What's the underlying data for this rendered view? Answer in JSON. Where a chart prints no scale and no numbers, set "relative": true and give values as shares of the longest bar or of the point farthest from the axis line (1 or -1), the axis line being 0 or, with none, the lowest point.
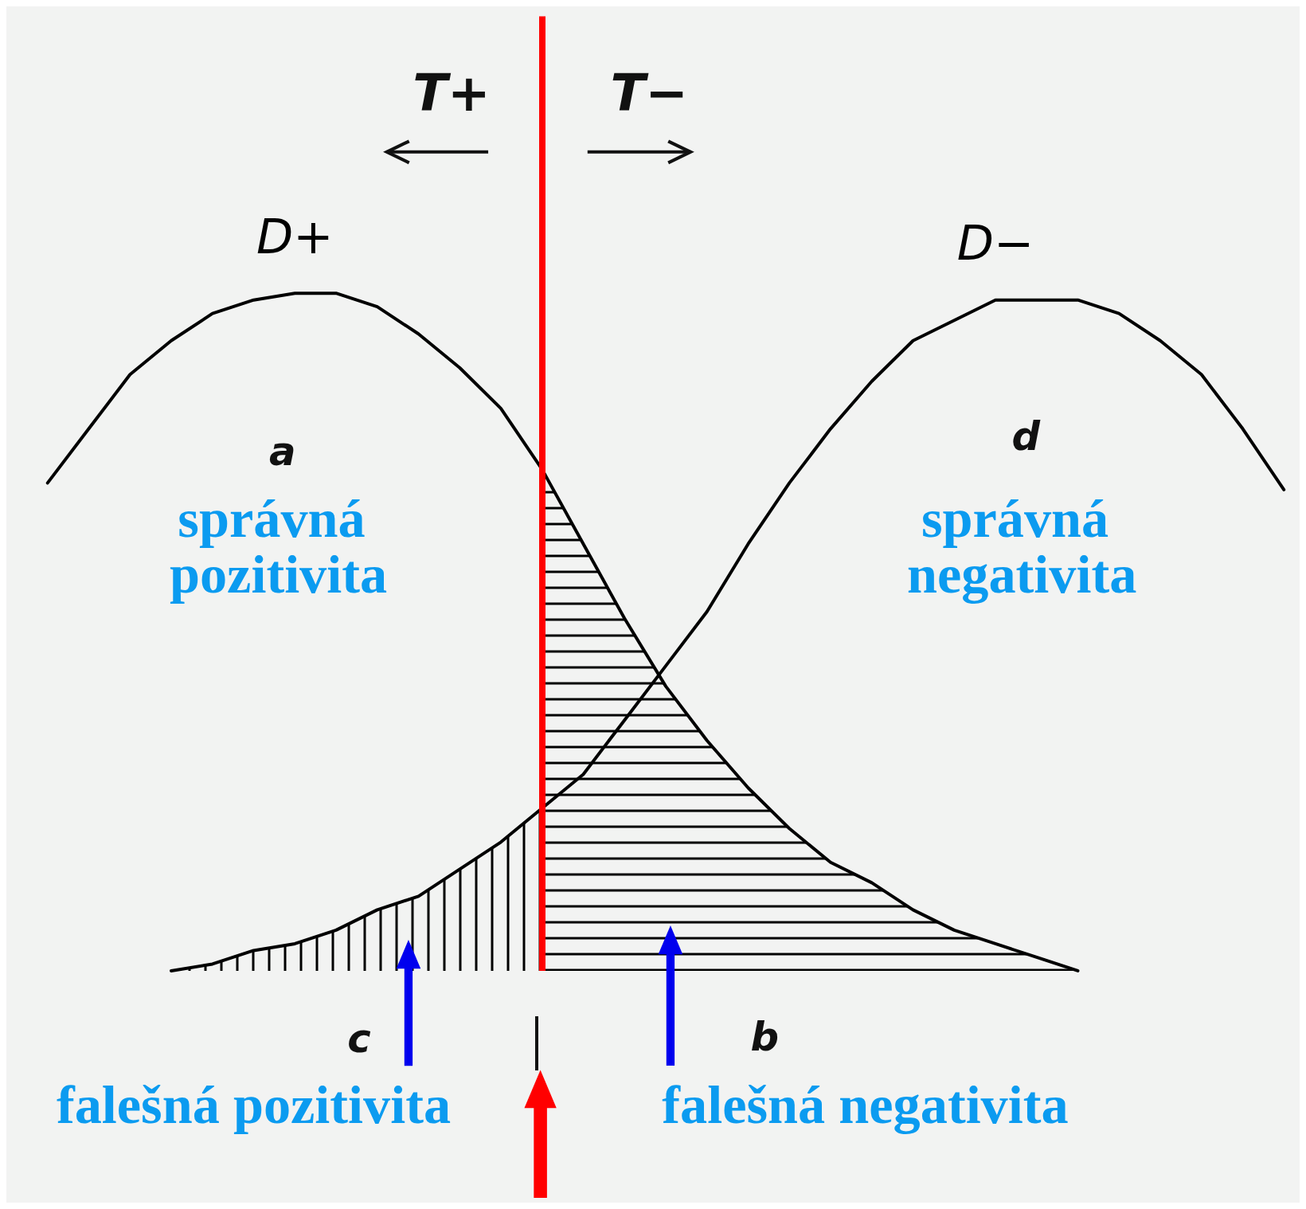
{
  "chart_data": {
    "type": "line",
    "relative": true,
    "tick_labels": false,
    "marker": "none",
    "line_style": "solid",
    "categories": [
      null,
      null,
      null,
      null,
      null,
      null,
      null,
      null,
      null,
      null,
      null,
      null,
      null,
      null,
      null,
      null,
      null,
      null,
      null,
      null,
      null,
      null,
      null,
      null,
      null,
      null,
      null,
      null,
      null,
      null,
      null
    ],
    "series": [
      {
        "name": "D+",
        "color": "#000000",
        "values": [
          0.72,
          0.8,
          0.88,
          0.93,
          0.97,
          0.99,
          1.0,
          1.0,
          0.98,
          0.94,
          0.89,
          0.83,
          0.74,
          0.63,
          0.52,
          0.42,
          0.34,
          0.27,
          0.21,
          0.16,
          0.13,
          0.09,
          0.06,
          0.04,
          0.02,
          0,
          null,
          null,
          null,
          null,
          null
        ]
      },
      {
        "name": "D−",
        "color": "#000000",
        "values": [
          null,
          null,
          null,
          0,
          0.01,
          0.03,
          0.04,
          0.06,
          0.09,
          0.11,
          0.15,
          0.19,
          0.24,
          0.29,
          0.37,
          0.45,
          0.53,
          0.63,
          0.72,
          0.8,
          0.87,
          0.93,
          0.96,
          0.99,
          0.99,
          0.99,
          0.97,
          0.93,
          0.88,
          0.8,
          0.71
        ]
      },
      {
        "type": "area",
        "color": "#000000",
        "values": [
          null,
          null,
          null,
          0,
          0.01,
          0.03,
          0.04,
          0.06,
          0.09,
          0.11,
          0.15,
          0.19,
          0.24,
          null,
          null,
          null,
          null,
          null,
          null,
          null,
          null,
          null,
          null,
          null,
          null,
          null,
          null,
          null,
          null,
          null,
          null
        ]
      },
      {
        "type": "area",
        "color": "#000000",
        "values": [
          null,
          null,
          null,
          null,
          null,
          null,
          null,
          null,
          null,
          null,
          null,
          null,
          0.74,
          0.63,
          0.52,
          0.42,
          0.34,
          0.27,
          0.21,
          0.16,
          0.13,
          0.09,
          0.06,
          0.04,
          0.02,
          0,
          null,
          null,
          null,
          null,
          null
        ]
      }
    ],
    "annotations": [
      "T+",
      "T−",
      "a",
      "d",
      "správná pozitivita",
      "správná negativita",
      "c",
      "b",
      "falešná pozitivita",
      "falešná negativita"
    ]
  }
}
